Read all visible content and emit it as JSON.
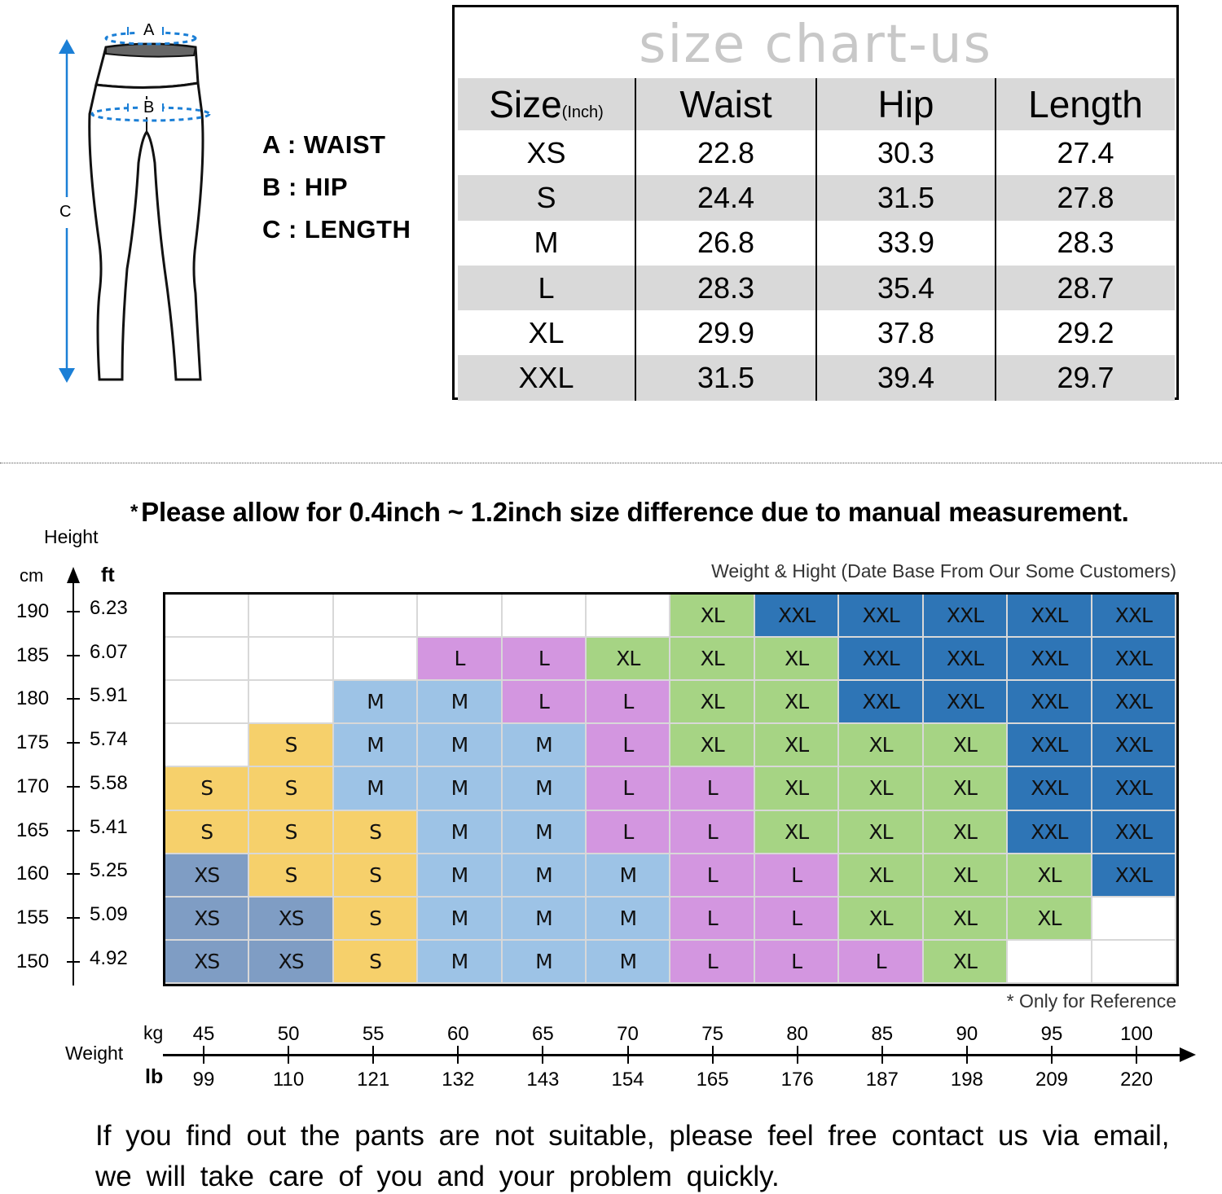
{
  "diagram": {
    "markers": {
      "a": "A",
      "b": "B",
      "c": "C"
    },
    "legend": [
      {
        "key": "A",
        "label": "A : WAIST"
      },
      {
        "key": "B",
        "label": "B : HIP"
      },
      {
        "key": "C",
        "label": "C : LENGTH"
      }
    ],
    "accent_color": "#1b7fd6"
  },
  "size_table": {
    "title": "size chart-us",
    "headers": {
      "size": "Size",
      "size_unit": "(Inch)",
      "waist": "Waist",
      "hip": "Hip",
      "length": "Length"
    },
    "rows": [
      {
        "size": "XS",
        "waist": "22.8",
        "hip": "30.3",
        "length": "27.4"
      },
      {
        "size": "S",
        "waist": "24.4",
        "hip": "31.5",
        "length": "27.8"
      },
      {
        "size": "M",
        "waist": "26.8",
        "hip": "33.9",
        "length": "28.3"
      },
      {
        "size": "L",
        "waist": "28.3",
        "hip": "35.4",
        "length": "28.7"
      },
      {
        "size": "XL",
        "waist": "29.9",
        "hip": "37.8",
        "length": "29.2"
      },
      {
        "size": "XXL",
        "waist": "31.5",
        "hip": "39.4",
        "length": "29.7"
      }
    ]
  },
  "note": {
    "star": "*",
    "text": "Please allow for 0.4inch ~ 1.2inch size difference due to manual measurement."
  },
  "chart_subtitle": "Weight & Hight (Date Base From Our Some Customers)",
  "reference_note": "* Only for Reference",
  "y_axis": {
    "title": "Height",
    "unit_cm": "cm",
    "unit_ft": "ft",
    "ticks": [
      {
        "cm": "190",
        "ft": "6.23"
      },
      {
        "cm": "185",
        "ft": "6.07"
      },
      {
        "cm": "180",
        "ft": "5.91"
      },
      {
        "cm": "175",
        "ft": "5.74"
      },
      {
        "cm": "170",
        "ft": "5.58"
      },
      {
        "cm": "165",
        "ft": "5.41"
      },
      {
        "cm": "160",
        "ft": "5.25"
      },
      {
        "cm": "155",
        "ft": "5.09"
      },
      {
        "cm": "150",
        "ft": "4.92"
      }
    ]
  },
  "x_axis": {
    "title": "Weight",
    "unit_kg": "kg",
    "unit_lb": "lb",
    "ticks": [
      {
        "kg": "45",
        "lb": "99"
      },
      {
        "kg": "50",
        "lb": "110"
      },
      {
        "kg": "55",
        "lb": "121"
      },
      {
        "kg": "60",
        "lb": "132"
      },
      {
        "kg": "65",
        "lb": "143"
      },
      {
        "kg": "70",
        "lb": "154"
      },
      {
        "kg": "75",
        "lb": "165"
      },
      {
        "kg": "80",
        "lb": "176"
      },
      {
        "kg": "85",
        "lb": "187"
      },
      {
        "kg": "90",
        "lb": "198"
      },
      {
        "kg": "95",
        "lb": "209"
      },
      {
        "kg": "100",
        "lb": "220"
      }
    ]
  },
  "size_colors": {
    "XS": "#7f9dc4",
    "S": "#f6d06b",
    "M": "#9dc3e6",
    "L": "#d396e0",
    "XL": "#a6d484",
    "XXL": "#2e75b6",
    "": "#ffffff"
  },
  "footer": {
    "line1": "If you find out the pants are not suitable, please feel free contact us via email,",
    "line2": "we will take care of you and your problem quickly."
  },
  "chart_data": [
    {
      "type": "table",
      "title": "size chart-us",
      "columns": [
        "Size (Inch)",
        "Waist",
        "Hip",
        "Length"
      ],
      "rows": [
        [
          "XS",
          22.8,
          30.3,
          27.4
        ],
        [
          "S",
          24.4,
          31.5,
          27.8
        ],
        [
          "M",
          26.8,
          33.9,
          28.3
        ],
        [
          "L",
          28.3,
          35.4,
          28.7
        ],
        [
          "XL",
          29.9,
          37.8,
          29.2
        ],
        [
          "XXL",
          31.5,
          39.4,
          29.7
        ]
      ]
    },
    {
      "type": "heatmap",
      "title": "Weight & Hight (Date Base From Our Some Customers)",
      "xlabel": "Weight",
      "ylabel": "Height",
      "x_kg": [
        45,
        50,
        55,
        60,
        65,
        70,
        75,
        80,
        85,
        90,
        95,
        100
      ],
      "x_lb": [
        99,
        110,
        121,
        132,
        143,
        154,
        165,
        176,
        187,
        198,
        209,
        220
      ],
      "y_cm": [
        190,
        185,
        180,
        175,
        170,
        165,
        160,
        155,
        150
      ],
      "y_ft": [
        6.23,
        6.07,
        5.91,
        5.74,
        5.58,
        5.41,
        5.25,
        5.09,
        4.92
      ],
      "cells": [
        [
          "",
          "",
          "",
          "",
          "",
          "",
          "XL",
          "XXL",
          "XXL",
          "XXL",
          "XXL",
          "XXL"
        ],
        [
          "",
          "",
          "",
          "L",
          "L",
          "XL",
          "XL",
          "XL",
          "XXL",
          "XXL",
          "XXL",
          "XXL"
        ],
        [
          "",
          "",
          "M",
          "M",
          "L",
          "L",
          "XL",
          "XL",
          "XXL",
          "XXL",
          "XXL",
          "XXL"
        ],
        [
          "",
          "S",
          "M",
          "M",
          "M",
          "L",
          "XL",
          "XL",
          "XL",
          "XL",
          "XXL",
          "XXL"
        ],
        [
          "S",
          "S",
          "M",
          "M",
          "M",
          "L",
          "L",
          "XL",
          "XL",
          "XL",
          "XXL",
          "XXL"
        ],
        [
          "S",
          "S",
          "S",
          "M",
          "M",
          "L",
          "L",
          "XL",
          "XL",
          "XL",
          "XXL",
          "XXL"
        ],
        [
          "XS",
          "S",
          "S",
          "M",
          "M",
          "M",
          "L",
          "L",
          "XL",
          "XL",
          "XL",
          "XXL"
        ],
        [
          "XS",
          "XS",
          "S",
          "M",
          "M",
          "M",
          "L",
          "L",
          "XL",
          "XL",
          "XL",
          ""
        ],
        [
          "XS",
          "XS",
          "S",
          "M",
          "M",
          "M",
          "L",
          "L",
          "L",
          "XL",
          "",
          ""
        ]
      ],
      "annotations": [
        "* Only for Reference"
      ]
    }
  ]
}
